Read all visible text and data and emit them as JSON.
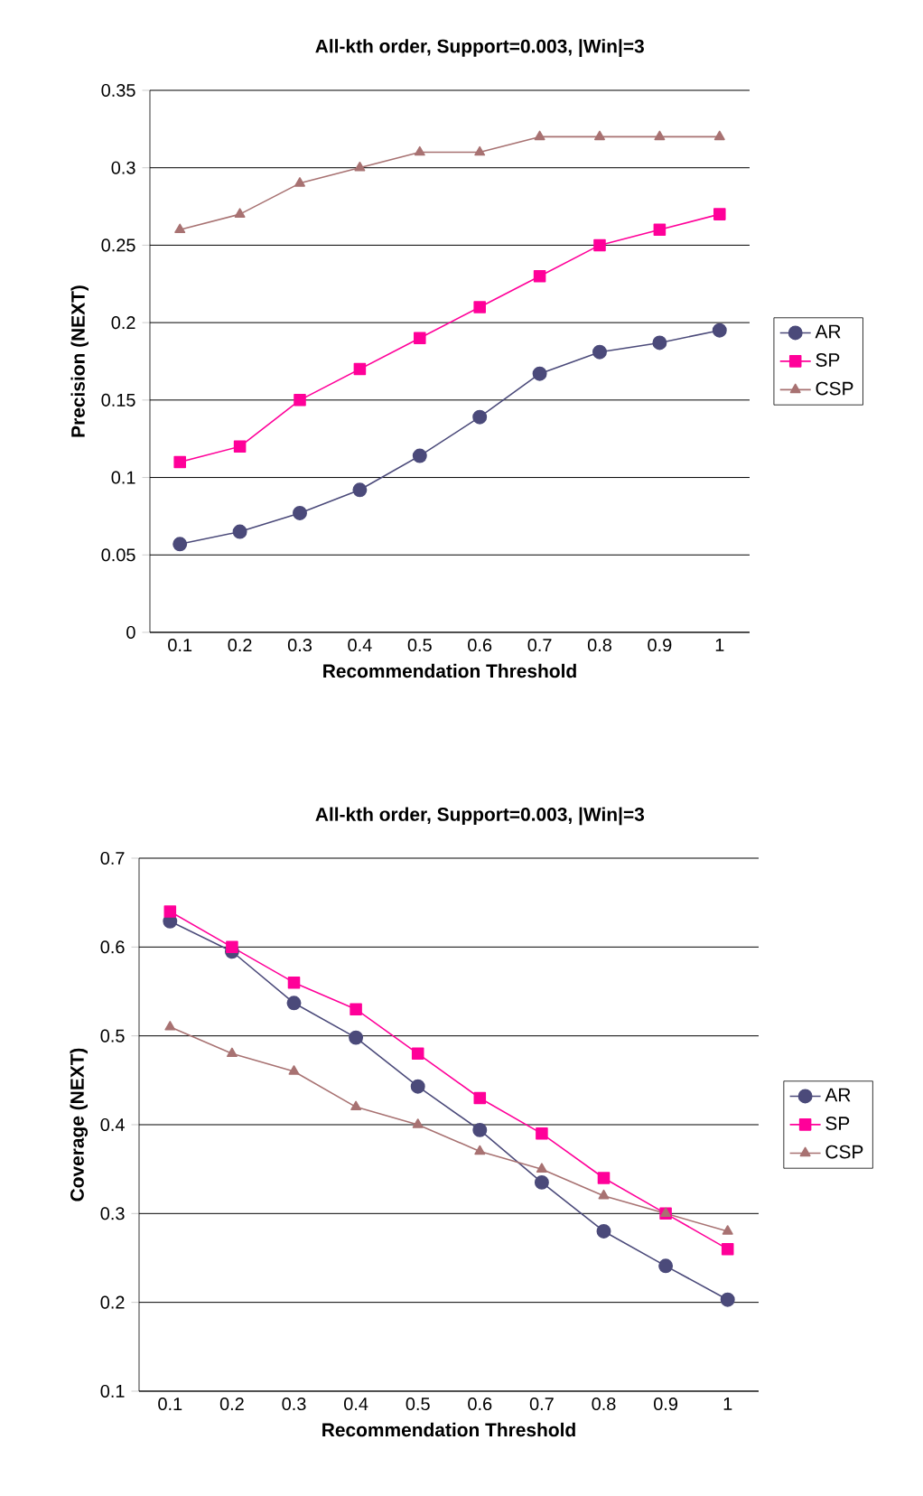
{
  "chart_data": [
    {
      "type": "line",
      "title": "All-kth order, Support=0.003, |Win|=3",
      "xlabel": "Recommendation Threshold",
      "ylabel": "Precision (NEXT)",
      "categories": [
        "0.1",
        "0.2",
        "0.3",
        "0.4",
        "0.5",
        "0.6",
        "0.7",
        "0.8",
        "0.9",
        "1"
      ],
      "series": [
        {
          "name": "AR",
          "color": "#4b4a7a",
          "marker": "circle",
          "values": [
            0.057,
            0.065,
            0.077,
            0.092,
            0.114,
            0.139,
            0.167,
            0.181,
            0.187,
            0.195
          ]
        },
        {
          "name": "SP",
          "color": "#ff0099",
          "marker": "square",
          "values": [
            0.11,
            0.12,
            0.15,
            0.17,
            0.19,
            0.21,
            0.23,
            0.25,
            0.26,
            0.27
          ]
        },
        {
          "name": "CSP",
          "color": "#a87272",
          "marker": "triangle",
          "values": [
            0.26,
            0.27,
            0.29,
            0.3,
            0.31,
            0.31,
            0.32,
            0.32,
            0.32,
            0.32
          ]
        }
      ],
      "ylim": [
        0,
        0.35
      ],
      "yticks": [
        0,
        0.05,
        0.1,
        0.15,
        0.2,
        0.25,
        0.3,
        0.35
      ],
      "grid": "y",
      "legend": "right"
    },
    {
      "type": "line",
      "title": "All-kth order, Support=0.003, |Win|=3",
      "xlabel": "Recommendation Threshold",
      "ylabel": "Coverage (NEXT)",
      "categories": [
        "0.1",
        "0.2",
        "0.3",
        "0.4",
        "0.5",
        "0.6",
        "0.7",
        "0.8",
        "0.9",
        "1"
      ],
      "series": [
        {
          "name": "AR",
          "color": "#4b4a7a",
          "marker": "circle",
          "values": [
            0.629,
            0.595,
            0.537,
            0.498,
            0.443,
            0.394,
            0.335,
            0.28,
            0.241,
            0.203
          ]
        },
        {
          "name": "SP",
          "color": "#ff0099",
          "marker": "square",
          "values": [
            0.64,
            0.6,
            0.56,
            0.53,
            0.48,
            0.43,
            0.39,
            0.34,
            0.3,
            0.26
          ]
        },
        {
          "name": "CSP",
          "color": "#a87272",
          "marker": "triangle",
          "values": [
            0.51,
            0.48,
            0.46,
            0.42,
            0.4,
            0.37,
            0.35,
            0.32,
            0.3,
            0.28
          ]
        }
      ],
      "ylim": [
        0.1,
        0.7
      ],
      "yticks": [
        0.1,
        0.2,
        0.3,
        0.4,
        0.5,
        0.6,
        0.7
      ],
      "grid": "y",
      "legend": "right"
    }
  ]
}
